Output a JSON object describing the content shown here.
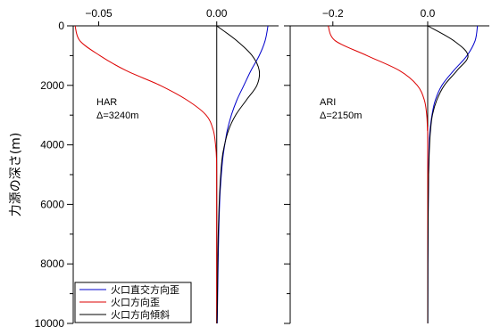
{
  "chart_data": [
    {
      "type": "line",
      "annotation": [
        "HAR",
        "Δ=3240m"
      ],
      "xlim": [
        -0.0608,
        0.0262
      ],
      "xticks": [
        -0.05,
        0.0
      ],
      "xtick_labels": [
        "−0.05",
        "0.00"
      ],
      "ylim": [
        0,
        10000
      ],
      "yticks": [
        0,
        2000,
        4000,
        6000,
        8000,
        10000
      ],
      "ytick_labels": [
        "0",
        "2000",
        "4000",
        "6000",
        "8000",
        "10000"
      ],
      "ylabel": "力源の深さ(m)",
      "y_inverted": true,
      "series": [
        {
          "name": "火口直交方向歪",
          "color": "#0000cc",
          "x": [
            0.0217,
            0.0205,
            0.018,
            0.0145,
            0.0115,
            0.0085,
            0.0062,
            0.0045,
            0.0034,
            0.0025,
            0.0015,
            0.001,
            0.0007,
            0.0004,
            0.0002
          ],
          "y": [
            0,
            500,
            1000,
            1500,
            2000,
            2500,
            3000,
            3500,
            4000,
            4500,
            5500,
            6500,
            7500,
            9000,
            10000
          ]
        },
        {
          "name": "火口方向歪",
          "color": "#dd0000",
          "x": [
            -0.06,
            -0.058,
            -0.0495,
            -0.0385,
            -0.024,
            -0.0125,
            -0.0045,
            -0.0015,
            -0.0005,
            -0.0001,
            0.0,
            0.0
          ],
          "y": [
            0,
            500,
            1000,
            1500,
            2000,
            2500,
            3000,
            3500,
            4000,
            4500,
            5500,
            10000
          ]
        },
        {
          "name": "火口方向傾斜",
          "color": "#000000",
          "x": [
            0.0,
            0.0085,
            0.015,
            0.018,
            0.017,
            0.0125,
            0.008,
            0.005,
            0.0033,
            0.0022,
            0.0013,
            0.0008,
            0.0005,
            0.0003,
            0.0001
          ],
          "y": [
            0,
            500,
            1000,
            1500,
            2000,
            2500,
            3000,
            3500,
            4000,
            4500,
            5500,
            6500,
            7500,
            9000,
            10000
          ]
        }
      ],
      "legend": {
        "position": "bottom-left",
        "entries": [
          "火口直交方向歪",
          "火口方向歪",
          "火口方向傾斜"
        ]
      }
    },
    {
      "type": "line",
      "annotation": [
        "ARI",
        "Δ=2150m"
      ],
      "xlim": [
        -0.29,
        0.13
      ],
      "xticks": [
        -0.2,
        0.0
      ],
      "xtick_labels": [
        "−0.2",
        "0.0"
      ],
      "ylim": [
        0,
        10000
      ],
      "yticks": [
        0,
        2000,
        4000,
        6000,
        8000,
        10000
      ],
      "y_inverted": true,
      "series": [
        {
          "name": "火口直交方向歪",
          "color": "#0000cc",
          "x": [
            0.105,
            0.1,
            0.083,
            0.055,
            0.03,
            0.016,
            0.009,
            0.005,
            0.003,
            0.002,
            0.001,
            0.0005,
            0.0002
          ],
          "y": [
            0,
            500,
            1000,
            1500,
            2000,
            2500,
            3000,
            3500,
            4000,
            5000,
            6500,
            8000,
            10000
          ]
        },
        {
          "name": "火口方向歪",
          "color": "#dd0000",
          "x": [
            -0.21,
            -0.195,
            -0.128,
            -0.06,
            -0.022,
            -0.007,
            -0.002,
            -0.0005,
            0.0,
            0.0
          ],
          "y": [
            0,
            500,
            1000,
            1500,
            2000,
            2500,
            3000,
            3500,
            4000,
            10000
          ]
        },
        {
          "name": "火口方向傾斜",
          "color": "#000000",
          "x": [
            0.0,
            0.055,
            0.085,
            0.062,
            0.035,
            0.019,
            0.01,
            0.006,
            0.004,
            0.002,
            0.001,
            0.0005,
            0.0002
          ],
          "y": [
            0,
            500,
            1000,
            1500,
            2000,
            2500,
            3000,
            3500,
            4000,
            5000,
            6500,
            8000,
            10000
          ]
        }
      ]
    }
  ]
}
